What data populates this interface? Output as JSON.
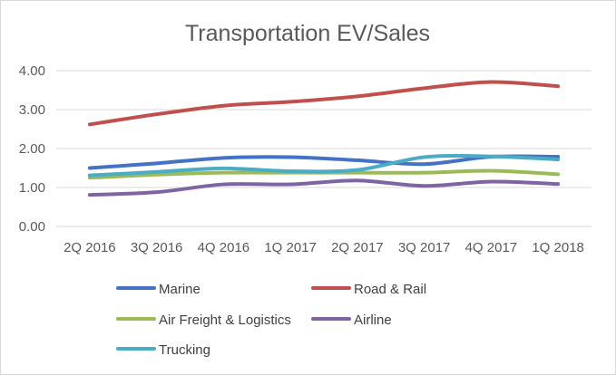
{
  "chart_data": {
    "type": "line",
    "title": "Transportation EV/Sales",
    "xlabel": "",
    "ylabel": "",
    "categories": [
      "2Q 2016",
      "3Q 2016",
      "4Q 2016",
      "1Q 2017",
      "2Q 2017",
      "3Q 2017",
      "4Q 2017",
      "1Q 2018"
    ],
    "ylim": [
      0,
      4
    ],
    "yticks": [
      "0.00",
      "1.00",
      "2.00",
      "3.00",
      "4.00"
    ],
    "grid": true,
    "legend_position": "bottom",
    "series": [
      {
        "name": "Marine",
        "color": "#4472c4",
        "values": [
          1.5,
          1.62,
          1.76,
          1.78,
          1.7,
          1.6,
          1.79,
          1.79
        ]
      },
      {
        "name": "Road & Rail",
        "color": "#c0504d",
        "values": [
          2.62,
          2.88,
          3.1,
          3.2,
          3.34,
          3.55,
          3.71,
          3.6
        ]
      },
      {
        "name": "Air Freight & Logistics",
        "color": "#9bbb59",
        "values": [
          1.25,
          1.33,
          1.38,
          1.38,
          1.38,
          1.38,
          1.43,
          1.34
        ]
      },
      {
        "name": "Airline",
        "color": "#8064a2",
        "values": [
          0.81,
          0.88,
          1.08,
          1.08,
          1.18,
          1.04,
          1.15,
          1.09
        ]
      },
      {
        "name": "Trucking",
        "color": "#4bacc6",
        "values": [
          1.31,
          1.4,
          1.49,
          1.42,
          1.45,
          1.78,
          1.8,
          1.72
        ]
      }
    ]
  }
}
